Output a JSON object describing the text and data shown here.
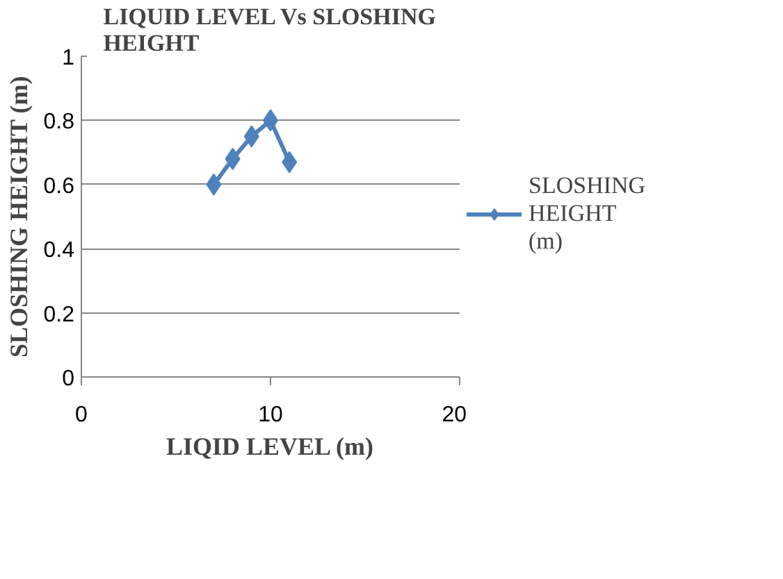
{
  "chart_data": {
    "type": "line",
    "title": "LIQUID LEVEL Vs SLOSHING HEIGHT",
    "xlabel": "LIQID LEVEL (m)",
    "ylabel": "SLOSHING HEIGHT (m)",
    "x": [
      7,
      8,
      9,
      10,
      11
    ],
    "series": [
      {
        "name": "SLOSHING HEIGHT (m)",
        "color": "#4f81bd",
        "values": [
          0.6,
          0.68,
          0.75,
          0.8,
          0.67
        ]
      }
    ],
    "xlim": [
      0,
      20
    ],
    "xticks": [
      0,
      10,
      20
    ],
    "ylim": [
      0,
      1
    ],
    "yticks": [
      0,
      0.2,
      0.4,
      0.6,
      0.8,
      1
    ],
    "grid": "y",
    "legend": "right",
    "marker": "diamond"
  }
}
